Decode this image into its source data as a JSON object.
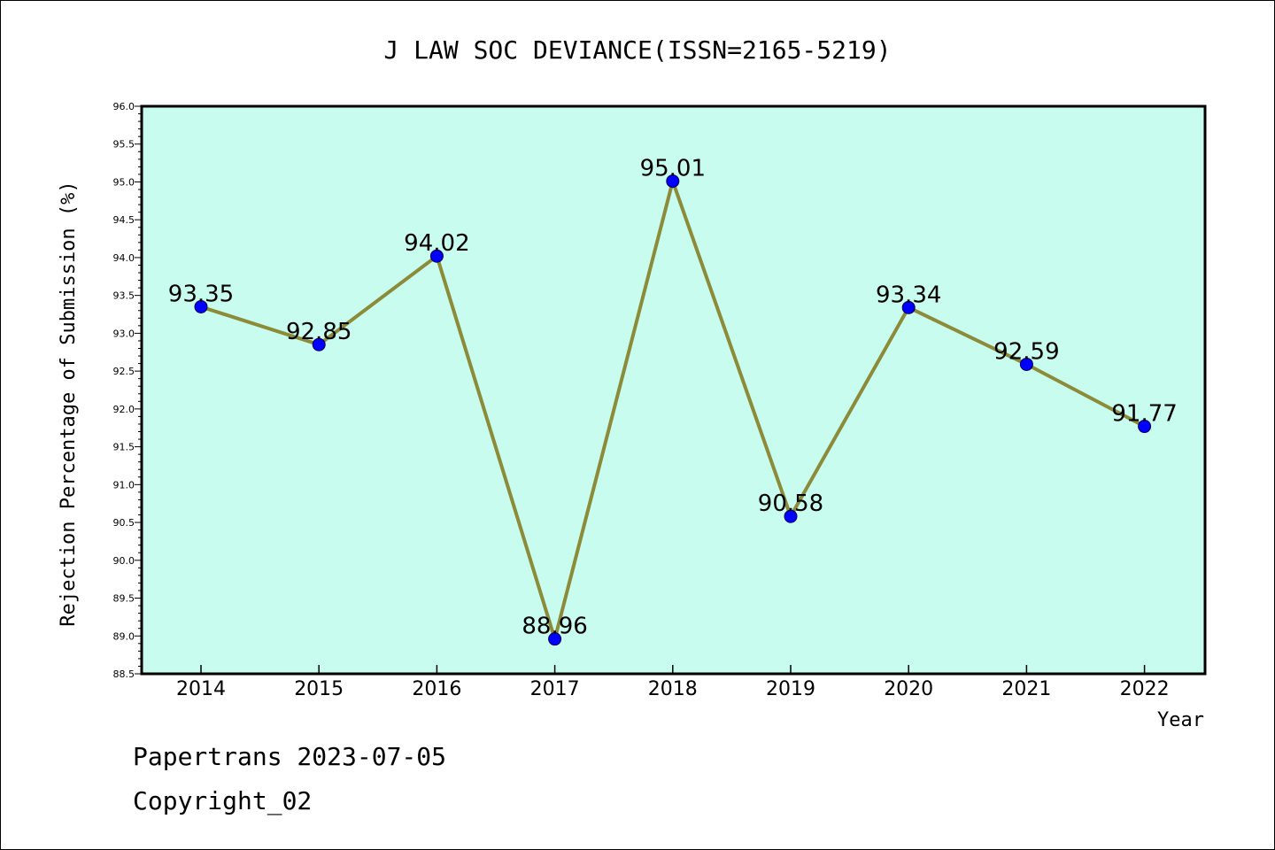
{
  "chart_data": {
    "type": "line",
    "title": "J LAW SOC DEVIANCE(ISSN=2165-5219)",
    "xlabel": "Year",
    "ylabel": "Rejection Percentage of Submission (%)",
    "categories": [
      "2014",
      "2015",
      "2016",
      "2017",
      "2018",
      "2019",
      "2020",
      "2021",
      "2022"
    ],
    "values": [
      93.35,
      92.85,
      94.02,
      88.96,
      95.01,
      90.58,
      93.34,
      92.59,
      91.77
    ],
    "value_labels": [
      "93.35",
      "92.85",
      "94.02",
      "88.96",
      "95.01",
      "90.58",
      "93.34",
      "92.59",
      "91.77"
    ],
    "ylim": [
      88.5,
      96.0
    ],
    "yticks": [
      "88.5",
      "89.0",
      "89.5",
      "90.0",
      "90.5",
      "91.0",
      "91.5",
      "92.0",
      "92.5",
      "93.0",
      "93.5",
      "94.0",
      "94.5",
      "95.0",
      "95.5",
      "96.0"
    ],
    "grid": false,
    "line_color": "#8B8B3A",
    "marker_color": "#0000FF",
    "plot_background": "#C8FCEE"
  },
  "footer": {
    "line1": "Papertrans 2023-07-05",
    "line2": "Copyright_02"
  }
}
